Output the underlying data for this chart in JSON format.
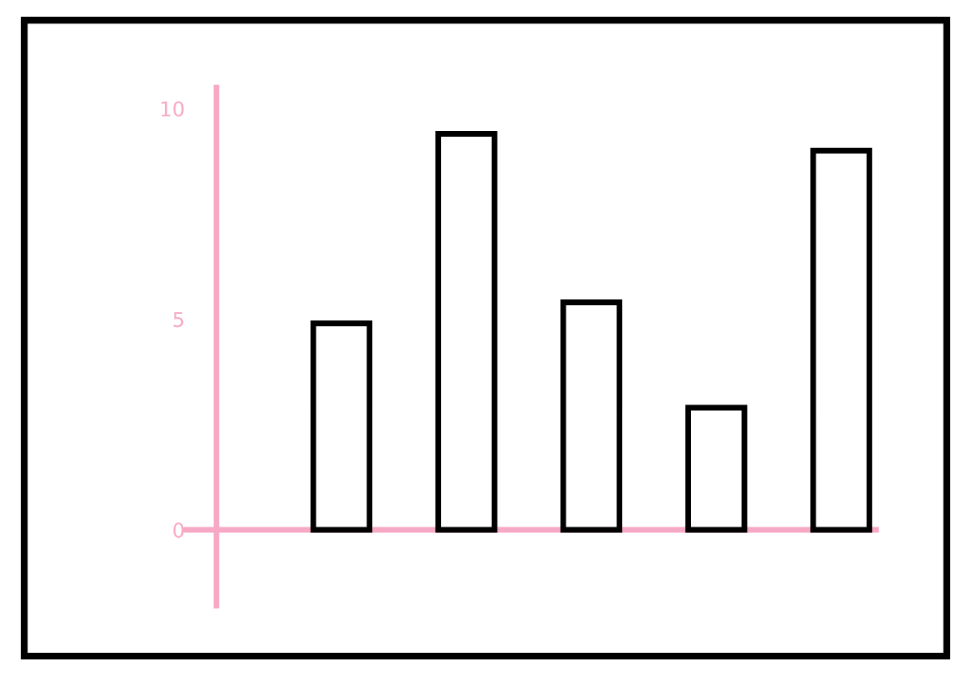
{
  "chart_data": {
    "type": "bar",
    "categories": [
      null,
      null,
      null,
      null,
      null
    ],
    "values": [
      4.9,
      9.4,
      5.4,
      2.9,
      9.0
    ],
    "color": "#ffffff",
    "ylim": [
      -1.8,
      10.5
    ],
    "yticks": [
      0,
      5,
      10
    ],
    "grid": false,
    "ref_lines": [
      {
        "axis": "y",
        "value": 0,
        "color": "#f7a8c4"
      }
    ]
  }
}
